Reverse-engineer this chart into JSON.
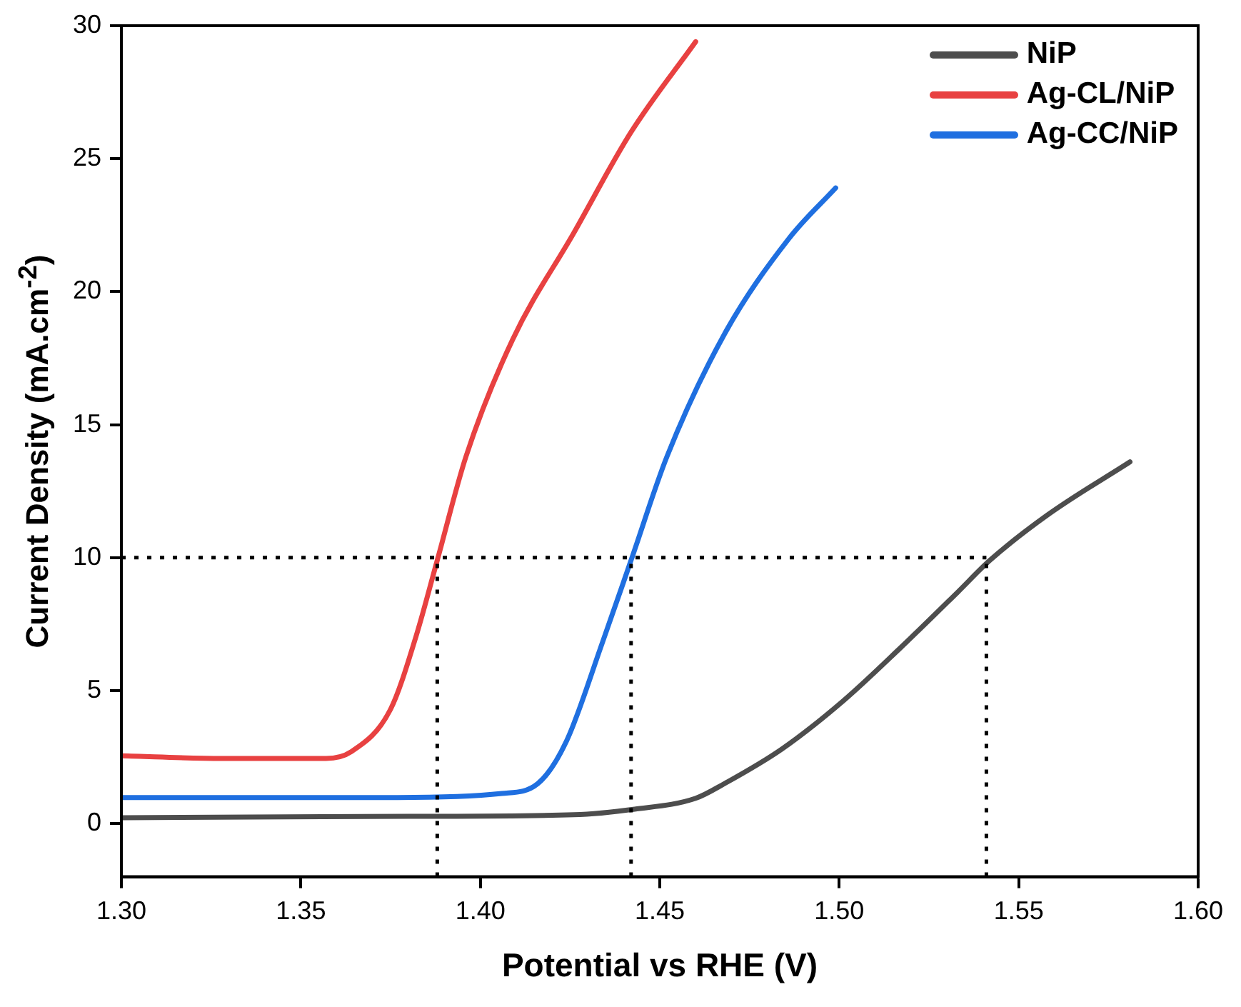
{
  "chart_data": {
    "type": "line",
    "xlabel": "Potential vs RHE (V)",
    "ylabel": "Current Density (mA.cm$^{-2}$)",
    "xlim": [
      1.3,
      1.6
    ],
    "xticks": [
      {
        "value": 1.3,
        "label": "1.30"
      },
      {
        "value": 1.35,
        "label": "1.35"
      },
      {
        "value": 1.4,
        "label": "1.40"
      },
      {
        "value": 1.45,
        "label": "1.45"
      },
      {
        "value": 1.5,
        "label": "1.50"
      },
      {
        "value": 1.55,
        "label": "1.55"
      },
      {
        "value": 1.6,
        "label": "1.60"
      }
    ],
    "ylim": [
      -2,
      30
    ],
    "yticks": [
      0,
      5,
      10,
      15,
      20,
      25,
      30
    ],
    "grid": false,
    "legend": "top right",
    "marker": "none",
    "line_style": "solid",
    "series": [
      {
        "name": "NiP",
        "color": "#4d4d4d",
        "x": [
          1.3,
          1.38,
          1.426,
          1.443,
          1.46,
          1.468,
          1.484,
          1.501,
          1.517,
          1.533,
          1.542,
          1.558,
          1.581
        ],
        "values": [
          0.22,
          0.27,
          0.33,
          0.54,
          0.95,
          1.5,
          2.8,
          4.6,
          6.6,
          8.7,
          9.9,
          11.6,
          13.6
        ]
      },
      {
        "name": "Ag-CL/NiP",
        "color": "#e84141",
        "x": [
          1.3,
          1.328,
          1.357,
          1.364,
          1.375,
          1.382,
          1.388,
          1.396,
          1.409,
          1.426,
          1.442,
          1.46
        ],
        "values": [
          2.55,
          2.45,
          2.45,
          2.7,
          4.3,
          7.0,
          9.9,
          13.8,
          18.2,
          22.2,
          26.0,
          29.4
        ]
      },
      {
        "name": "Ag-CC/NiP",
        "color": "#1f6fe0",
        "x": [
          1.3,
          1.377,
          1.406,
          1.416,
          1.424,
          1.434,
          1.442,
          1.452,
          1.468,
          1.486,
          1.499
        ],
        "values": [
          0.98,
          0.98,
          1.13,
          1.5,
          3.1,
          6.8,
          9.9,
          13.8,
          18.4,
          22.0,
          23.9
        ]
      }
    ],
    "ref_lines": [
      {
        "axis": "y",
        "value": 10,
        "color": "#000000",
        "line_style": "dotted"
      },
      {
        "axis": "x",
        "value": 1.388,
        "color": "#000000",
        "line_style": "dotted"
      },
      {
        "axis": "x",
        "value": 1.442,
        "color": "#000000",
        "line_style": "dotted"
      },
      {
        "axis": "x",
        "value": 1.541,
        "color": "#000000",
        "line_style": "dotted"
      }
    ]
  }
}
